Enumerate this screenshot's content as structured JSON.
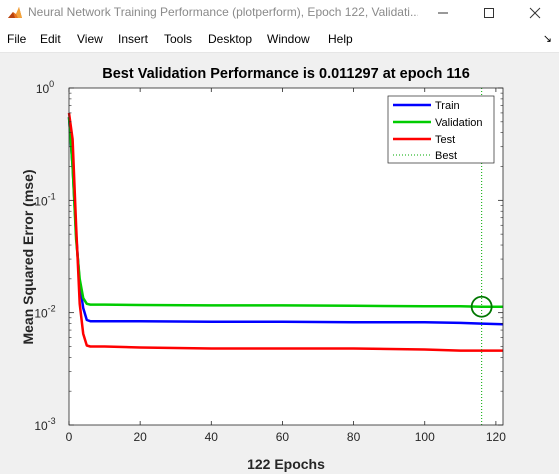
{
  "window": {
    "title": "Neural Network Training Performance (plotperform), Epoch 122, Validati...",
    "app_icon": "matlab-icon",
    "controls": {
      "minimize": "minimize-icon",
      "maximize": "maximize-icon",
      "close": "close-icon"
    }
  },
  "menubar": {
    "items": [
      "File",
      "Edit",
      "View",
      "Insert",
      "Tools",
      "Desktop",
      "Window",
      "Help"
    ],
    "dock_icon": "dock-arrow-icon"
  },
  "colors": {
    "train": "#0000ff",
    "validation": "#00cc00",
    "test": "#ff0000",
    "best": "#00aa00",
    "background": "#f0f0f0",
    "axes": "#ffffff"
  },
  "chart_data": {
    "type": "line",
    "title": "Best Validation Performance is 0.011297 at epoch 116",
    "xlabel": "122 Epochs",
    "ylabel": "Mean Squared Error  (mse)",
    "xlim": [
      0,
      122
    ],
    "ylim": [
      0.001,
      1
    ],
    "yscale": "log",
    "xticks": [
      "0",
      "20",
      "40",
      "60",
      "80",
      "100",
      "120"
    ],
    "xtick_values": [
      0,
      20,
      40,
      60,
      80,
      100,
      120
    ],
    "yticks": [
      {
        "base": "10",
        "exp": "0",
        "value": 1
      },
      {
        "base": "10",
        "exp": "-1",
        "value": 0.1
      },
      {
        "base": "10",
        "exp": "-2",
        "value": 0.01
      },
      {
        "base": "10",
        "exp": "-3",
        "value": 0.001
      }
    ],
    "grid": false,
    "legend": {
      "location": "top-right",
      "entries": [
        "Train",
        "Validation",
        "Test",
        "Best"
      ]
    },
    "series": [
      {
        "name": "Train",
        "x": [
          0,
          1,
          2,
          3,
          4,
          5,
          6,
          10,
          20,
          40,
          60,
          80,
          100,
          110,
          116,
          122
        ],
        "y": [
          0.55,
          0.2,
          0.05,
          0.018,
          0.011,
          0.0086,
          0.0084,
          0.0084,
          0.0084,
          0.0083,
          0.0083,
          0.0082,
          0.0082,
          0.0081,
          0.008,
          0.0079
        ]
      },
      {
        "name": "Validation",
        "x": [
          0,
          1,
          2,
          3,
          4,
          5,
          6,
          10,
          20,
          40,
          60,
          80,
          100,
          110,
          116,
          122
        ],
        "y": [
          0.55,
          0.2,
          0.045,
          0.02,
          0.0135,
          0.012,
          0.0118,
          0.0118,
          0.0117,
          0.0116,
          0.0116,
          0.0115,
          0.0114,
          0.0114,
          0.011297,
          0.0113
        ]
      },
      {
        "name": "Test",
        "x": [
          0,
          1,
          2,
          3,
          4,
          5,
          6,
          10,
          20,
          40,
          60,
          80,
          100,
          110,
          116,
          122
        ],
        "y": [
          0.6,
          0.35,
          0.06,
          0.012,
          0.0065,
          0.0051,
          0.005,
          0.005,
          0.0049,
          0.0048,
          0.0048,
          0.0048,
          0.0047,
          0.0046,
          0.0046,
          0.0046
        ]
      }
    ],
    "best": {
      "name": "Best",
      "epoch": 116,
      "value": 0.011297
    }
  }
}
